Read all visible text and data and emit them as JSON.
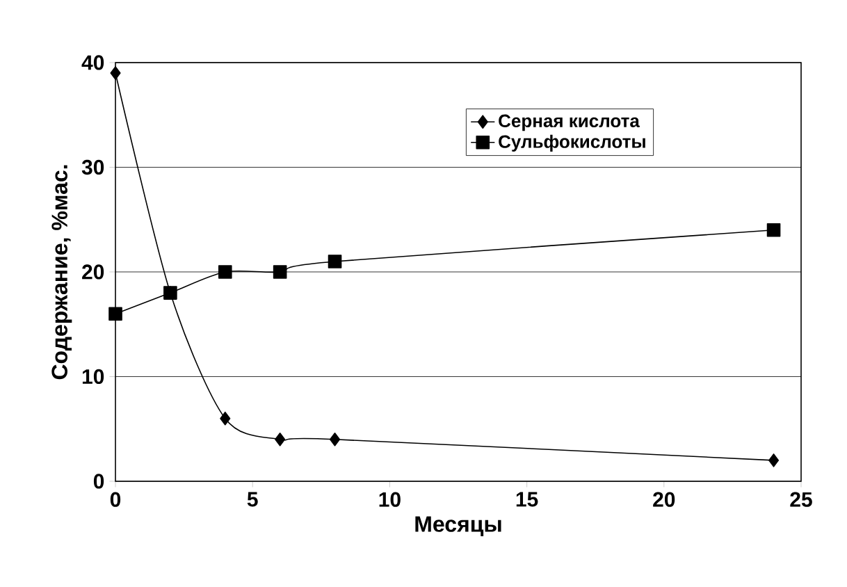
{
  "chart_data": {
    "type": "line",
    "xlabel": "Месяцы",
    "ylabel": "Содержание, %мас.",
    "series": [
      {
        "name": "Серная кислота",
        "color": "#000000",
        "marker": "diamond",
        "x": [
          0,
          2,
          4,
          6,
          8,
          24
        ],
        "values": [
          39,
          18,
          6,
          4,
          4,
          2
        ]
      },
      {
        "name": "Сульфокислоты",
        "color": "#000000",
        "marker": "square",
        "x": [
          0,
          2,
          4,
          6,
          8,
          24
        ],
        "values": [
          16,
          18,
          20,
          20,
          21,
          24
        ]
      }
    ],
    "xlim": [
      0,
      25
    ],
    "ylim": [
      0,
      40
    ],
    "xticks": [
      0,
      5,
      10,
      15,
      20,
      25
    ],
    "yticks": [
      0,
      10,
      20,
      30,
      40
    ],
    "grid": "y",
    "legend": "top right",
    "line_style": "solid"
  }
}
